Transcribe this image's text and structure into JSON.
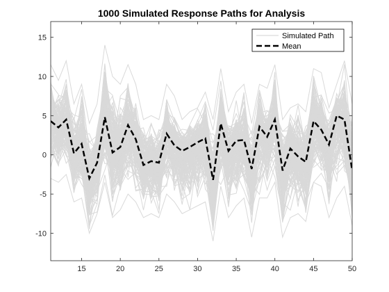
{
  "chart_data": {
    "type": "line",
    "title": "1000  Simulated  Response  Paths  for  Analysis",
    "xlabel": "",
    "ylabel": "",
    "xlim": [
      11,
      50
    ],
    "ylim": [
      -13.5,
      17
    ],
    "xticks": [
      15,
      20,
      25,
      30,
      35,
      40,
      45,
      50
    ],
    "yticks": [
      -10,
      -5,
      0,
      5,
      10,
      15
    ],
    "grid": false,
    "legend": {
      "placement": "top-right",
      "entries": [
        "Simulated Path",
        "Mean"
      ]
    },
    "x": [
      11,
      12,
      13,
      14,
      15,
      16,
      17,
      18,
      19,
      20,
      21,
      22,
      23,
      24,
      25,
      26,
      27,
      28,
      29,
      30,
      31,
      32,
      33,
      34,
      35,
      36,
      37,
      38,
      39,
      40,
      41,
      42,
      43,
      44,
      45,
      46,
      47,
      48,
      49,
      50
    ],
    "series": [
      {
        "name": "Simulated Path",
        "note_values": "envelope",
        "color": "#d9d9d9",
        "upper": [
          11.5,
          9.5,
          12.0,
          6.5,
          9.0,
          4.0,
          6.5,
          14.0,
          10.0,
          9.0,
          11.5,
          9.0,
          4.5,
          5.0,
          4.5,
          9.0,
          7.5,
          4.5,
          5.5,
          6.0,
          8.0,
          4.5,
          11.0,
          5.5,
          8.0,
          9.0,
          4.0,
          9.0,
          8.5,
          11.5,
          4.5,
          6.0,
          6.5,
          5.5,
          11.0,
          10.5,
          6.0,
          9.0,
          12.0,
          6.5
        ],
        "lower": [
          -3.0,
          -3.5,
          -2.5,
          -6.0,
          -5.5,
          -10.0,
          -7.5,
          -3.5,
          -8.0,
          -7.0,
          -5.0,
          -6.0,
          -8.0,
          -7.5,
          -8.0,
          -5.0,
          -6.0,
          -7.5,
          -7.0,
          -6.5,
          -6.0,
          -11.0,
          -4.0,
          -8.0,
          -6.5,
          -5.5,
          -10.5,
          -5.5,
          -5.5,
          -3.5,
          -10.5,
          -8.0,
          -7.5,
          -8.5,
          -3.5,
          -4.0,
          -8.0,
          -5.5,
          -4.0,
          -9.0
        ]
      },
      {
        "name": "Mean",
        "color": "#000000",
        "values": [
          4.3,
          3.5,
          4.5,
          0.2,
          1.4,
          -3.0,
          -1.0,
          4.8,
          0.3,
          1.0,
          3.8,
          2.0,
          -1.3,
          -0.8,
          -1.0,
          2.7,
          1.2,
          0.5,
          1.0,
          1.6,
          2.1,
          -3.2,
          4.0,
          0.5,
          1.8,
          1.9,
          -1.8,
          3.6,
          2.3,
          4.5,
          -2.0,
          0.8,
          -0.2,
          -0.9,
          4.3,
          3.2,
          1.3,
          5.0,
          4.5,
          -2.0
        ]
      }
    ]
  }
}
